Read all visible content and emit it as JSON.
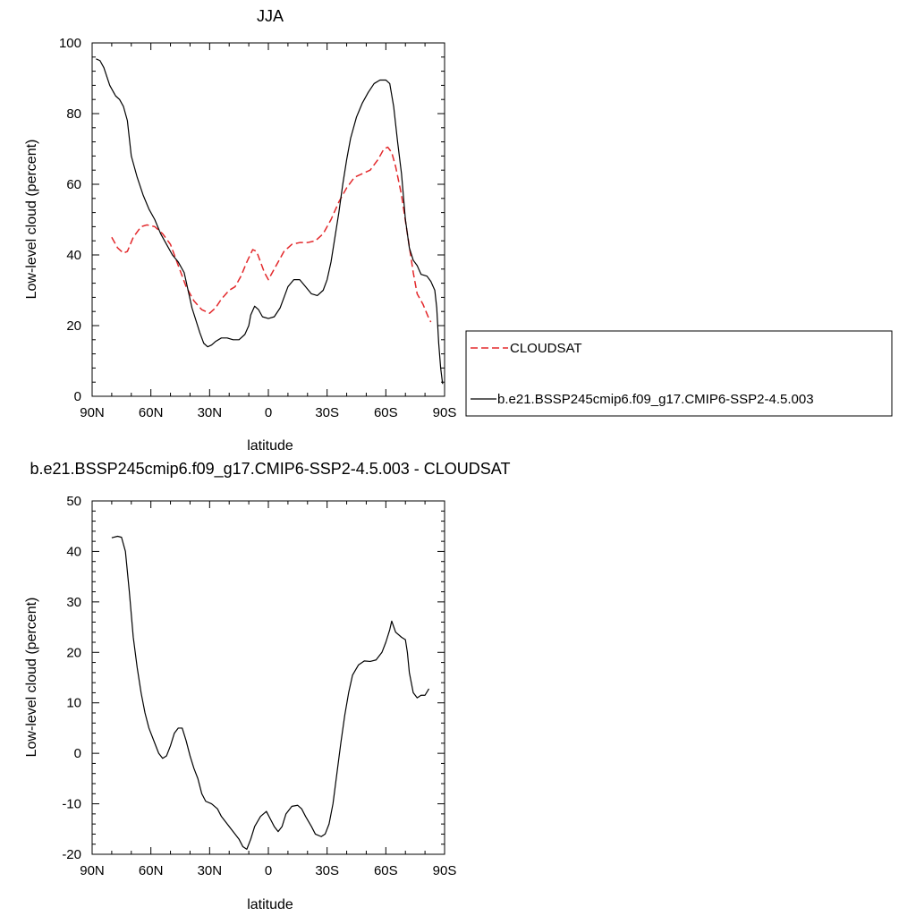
{
  "chart_data": [
    {
      "type": "line",
      "title": "JJA",
      "xlabel": "latitude",
      "ylabel": "Low-level cloud (percent)",
      "xlim": [
        90,
        -90
      ],
      "ylim": [
        0,
        100
      ],
      "x_ticks": [
        90,
        60,
        30,
        0,
        -30,
        -60,
        -90
      ],
      "x_tick_labels": [
        "90N",
        "60N",
        "30N",
        "0",
        "30S",
        "60S",
        "90S"
      ],
      "y_ticks": [
        0,
        20,
        40,
        60,
        80,
        100
      ],
      "y_tick_labels": [
        "0",
        "20",
        "40",
        "60",
        "80",
        "100"
      ],
      "legend_position": "right",
      "series": [
        {
          "name": "CLOUDSAT",
          "color": "#e3282b",
          "dash": "dashed",
          "points": [
            [
              80,
              45
            ],
            [
              77,
              42
            ],
            [
              74,
              40.5
            ],
            [
              72,
              41
            ],
            [
              69,
              45
            ],
            [
              65,
              48
            ],
            [
              62,
              48.5
            ],
            [
              58,
              48
            ],
            [
              54,
              46
            ],
            [
              50,
              43
            ],
            [
              46,
              37
            ],
            [
              42,
              31
            ],
            [
              38,
              27
            ],
            [
              34,
              24.5
            ],
            [
              30,
              23.5
            ],
            [
              27,
              25
            ],
            [
              24,
              27.5
            ],
            [
              20,
              30
            ],
            [
              17,
              31
            ],
            [
              14,
              34
            ],
            [
              11,
              38
            ],
            [
              8,
              41.5
            ],
            [
              6,
              41
            ],
            [
              4,
              38
            ],
            [
              2,
              35
            ],
            [
              0,
              33
            ],
            [
              -2,
              35
            ],
            [
              -5,
              38
            ],
            [
              -8,
              41
            ],
            [
              -12,
              43
            ],
            [
              -16,
              43.5
            ],
            [
              -20,
              43.5
            ],
            [
              -24,
              44
            ],
            [
              -28,
              46
            ],
            [
              -32,
              50
            ],
            [
              -36,
              55
            ],
            [
              -40,
              59
            ],
            [
              -44,
              62
            ],
            [
              -48,
              63
            ],
            [
              -52,
              64
            ],
            [
              -56,
              67
            ],
            [
              -59,
              70
            ],
            [
              -61,
              70.5
            ],
            [
              -63,
              69
            ],
            [
              -65,
              65
            ],
            [
              -68,
              57
            ],
            [
              -71,
              46
            ],
            [
              -74,
              35
            ],
            [
              -76,
              29
            ],
            [
              -79,
              26
            ],
            [
              -82,
              22
            ],
            [
              -83,
              21
            ]
          ]
        },
        {
          "name": "b.e21.BSSP245cmip6.f09_g17.CMIP6-SSP2-4.5.003",
          "color": "#000000",
          "dash": "solid",
          "points": [
            [
              88,
              95.5
            ],
            [
              86,
              95
            ],
            [
              84,
              93
            ],
            [
              81,
              88
            ],
            [
              78,
              85
            ],
            [
              76,
              84
            ],
            [
              74,
              82
            ],
            [
              72,
              78
            ],
            [
              70,
              68
            ],
            [
              67,
              62
            ],
            [
              64,
              57
            ],
            [
              61,
              53
            ],
            [
              58,
              50
            ],
            [
              55,
              46
            ],
            [
              52,
              43
            ],
            [
              49,
              40
            ],
            [
              46,
              38
            ],
            [
              43,
              35
            ],
            [
              41,
              30
            ],
            [
              39,
              25
            ],
            [
              37,
              21.5
            ],
            [
              35,
              18
            ],
            [
              33,
              15
            ],
            [
              31,
              14
            ],
            [
              29,
              14.5
            ],
            [
              27,
              15.5
            ],
            [
              24,
              16.5
            ],
            [
              21,
              16.5
            ],
            [
              18,
              16
            ],
            [
              15,
              16
            ],
            [
              12,
              17.5
            ],
            [
              10,
              20
            ],
            [
              9,
              23
            ],
            [
              7,
              25.5
            ],
            [
              5,
              24.5
            ],
            [
              3,
              22.5
            ],
            [
              0,
              22
            ],
            [
              -3,
              22.5
            ],
            [
              -6,
              25
            ],
            [
              -8,
              28
            ],
            [
              -10,
              31
            ],
            [
              -13,
              33
            ],
            [
              -16,
              33
            ],
            [
              -19,
              31
            ],
            [
              -22,
              29
            ],
            [
              -25,
              28.5
            ],
            [
              -28,
              30
            ],
            [
              -30,
              33
            ],
            [
              -32,
              38
            ],
            [
              -34,
              45
            ],
            [
              -36,
              52
            ],
            [
              -38,
              60
            ],
            [
              -40,
              67
            ],
            [
              -42,
              73
            ],
            [
              -45,
              79
            ],
            [
              -48,
              83
            ],
            [
              -51,
              86
            ],
            [
              -54,
              88.5
            ],
            [
              -57,
              89.5
            ],
            [
              -60,
              89.5
            ],
            [
              -62,
              88.5
            ],
            [
              -64,
              82
            ],
            [
              -66,
              72
            ],
            [
              -68,
              63
            ],
            [
              -70,
              50
            ],
            [
              -72,
              42
            ],
            [
              -74,
              38.5
            ],
            [
              -76,
              37
            ],
            [
              -78,
              34.5
            ],
            [
              -81,
              34
            ],
            [
              -83,
              32.5
            ],
            [
              -85,
              30
            ],
            [
              -86,
              25
            ],
            [
              -87,
              15
            ],
            [
              -88,
              8
            ],
            [
              -89,
              3.5
            ]
          ]
        }
      ]
    },
    {
      "type": "line",
      "title": "b.e21.BSSP245cmip6.f09_g17.CMIP6-SSP2-4.5.003 - CLOUDSAT",
      "xlabel": "latitude",
      "ylabel": "Low-level cloud (percent)",
      "xlim": [
        90,
        -90
      ],
      "ylim": [
        -20,
        50
      ],
      "x_ticks": [
        90,
        60,
        30,
        0,
        -30,
        -60,
        -90
      ],
      "x_tick_labels": [
        "90N",
        "60N",
        "30N",
        "0",
        "30S",
        "60S",
        "90S"
      ],
      "y_ticks": [
        -20,
        -10,
        0,
        10,
        20,
        30,
        40,
        50
      ],
      "y_tick_labels": [
        "-20",
        "-10",
        "0",
        "10",
        "20",
        "30",
        "40",
        "50"
      ],
      "series": [
        {
          "name": "",
          "color": "#000000",
          "dash": "solid",
          "points": [
            [
              80,
              42.7
            ],
            [
              77,
              43
            ],
            [
              75,
              42.8
            ],
            [
              73,
              40
            ],
            [
              71,
              32
            ],
            [
              69,
              23
            ],
            [
              67,
              17
            ],
            [
              65,
              12
            ],
            [
              63,
              8
            ],
            [
              61,
              5
            ],
            [
              58,
              2
            ],
            [
              56,
              0
            ],
            [
              54,
              -1
            ],
            [
              52,
              -0.5
            ],
            [
              50,
              1.5
            ],
            [
              48,
              4
            ],
            [
              46,
              5
            ],
            [
              44,
              5
            ],
            [
              42,
              2.5
            ],
            [
              40,
              -0.5
            ],
            [
              38,
              -3
            ],
            [
              36,
              -5
            ],
            [
              34,
              -8
            ],
            [
              32,
              -9.5
            ],
            [
              29,
              -10
            ],
            [
              26,
              -11
            ],
            [
              24,
              -12.5
            ],
            [
              21,
              -14
            ],
            [
              18,
              -15.5
            ],
            [
              15,
              -17
            ],
            [
              13,
              -18.5
            ],
            [
              11,
              -19
            ],
            [
              9,
              -17
            ],
            [
              7,
              -14.5
            ],
            [
              4,
              -12.5
            ],
            [
              1,
              -11.5
            ],
            [
              -1,
              -13
            ],
            [
              -3,
              -14.5
            ],
            [
              -5,
              -15.5
            ],
            [
              -7,
              -14.5
            ],
            [
              -9,
              -12
            ],
            [
              -12,
              -10.5
            ],
            [
              -15,
              -10.3
            ],
            [
              -17,
              -11
            ],
            [
              -19,
              -12.5
            ],
            [
              -22,
              -14.5
            ],
            [
              -24,
              -16
            ],
            [
              -27,
              -16.5
            ],
            [
              -29,
              -16
            ],
            [
              -31,
              -14
            ],
            [
              -33,
              -10
            ],
            [
              -35,
              -4
            ],
            [
              -37,
              2
            ],
            [
              -39,
              7.5
            ],
            [
              -41,
              12
            ],
            [
              -43,
              15.5
            ],
            [
              -46,
              17.5
            ],
            [
              -49,
              18.3
            ],
            [
              -52,
              18.2
            ],
            [
              -55,
              18.5
            ],
            [
              -58,
              20
            ],
            [
              -60,
              22
            ],
            [
              -62,
              24.5
            ],
            [
              -63,
              26.2
            ],
            [
              -65,
              24
            ],
            [
              -68,
              23
            ],
            [
              -70,
              22.5
            ],
            [
              -71,
              20
            ],
            [
              -72,
              16
            ],
            [
              -74,
              12
            ],
            [
              -76,
              11
            ],
            [
              -78,
              11.5
            ],
            [
              -80,
              11.5
            ],
            [
              -82,
              12.8
            ]
          ]
        }
      ]
    }
  ]
}
